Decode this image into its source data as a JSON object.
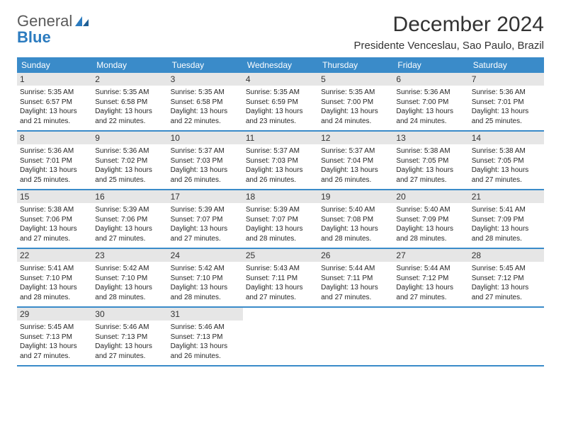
{
  "brand": {
    "name1": "General",
    "name2": "Blue"
  },
  "title": "December 2024",
  "location": "Presidente Venceslau, Sao Paulo, Brazil",
  "colors": {
    "header_bg": "#3a8bc9",
    "daynum_bg": "#e6e6e6",
    "row_border": "#3a8bc9",
    "text": "#333333",
    "brand_blue": "#2b7bbf"
  },
  "weekdays": [
    "Sunday",
    "Monday",
    "Tuesday",
    "Wednesday",
    "Thursday",
    "Friday",
    "Saturday"
  ],
  "weeks": [
    [
      {
        "n": "1",
        "sr": "Sunrise: 5:35 AM",
        "ss": "Sunset: 6:57 PM",
        "d1": "Daylight: 13 hours",
        "d2": "and 21 minutes."
      },
      {
        "n": "2",
        "sr": "Sunrise: 5:35 AM",
        "ss": "Sunset: 6:58 PM",
        "d1": "Daylight: 13 hours",
        "d2": "and 22 minutes."
      },
      {
        "n": "3",
        "sr": "Sunrise: 5:35 AM",
        "ss": "Sunset: 6:58 PM",
        "d1": "Daylight: 13 hours",
        "d2": "and 22 minutes."
      },
      {
        "n": "4",
        "sr": "Sunrise: 5:35 AM",
        "ss": "Sunset: 6:59 PM",
        "d1": "Daylight: 13 hours",
        "d2": "and 23 minutes."
      },
      {
        "n": "5",
        "sr": "Sunrise: 5:35 AM",
        "ss": "Sunset: 7:00 PM",
        "d1": "Daylight: 13 hours",
        "d2": "and 24 minutes."
      },
      {
        "n": "6",
        "sr": "Sunrise: 5:36 AM",
        "ss": "Sunset: 7:00 PM",
        "d1": "Daylight: 13 hours",
        "d2": "and 24 minutes."
      },
      {
        "n": "7",
        "sr": "Sunrise: 5:36 AM",
        "ss": "Sunset: 7:01 PM",
        "d1": "Daylight: 13 hours",
        "d2": "and 25 minutes."
      }
    ],
    [
      {
        "n": "8",
        "sr": "Sunrise: 5:36 AM",
        "ss": "Sunset: 7:01 PM",
        "d1": "Daylight: 13 hours",
        "d2": "and 25 minutes."
      },
      {
        "n": "9",
        "sr": "Sunrise: 5:36 AM",
        "ss": "Sunset: 7:02 PM",
        "d1": "Daylight: 13 hours",
        "d2": "and 25 minutes."
      },
      {
        "n": "10",
        "sr": "Sunrise: 5:37 AM",
        "ss": "Sunset: 7:03 PM",
        "d1": "Daylight: 13 hours",
        "d2": "and 26 minutes."
      },
      {
        "n": "11",
        "sr": "Sunrise: 5:37 AM",
        "ss": "Sunset: 7:03 PM",
        "d1": "Daylight: 13 hours",
        "d2": "and 26 minutes."
      },
      {
        "n": "12",
        "sr": "Sunrise: 5:37 AM",
        "ss": "Sunset: 7:04 PM",
        "d1": "Daylight: 13 hours",
        "d2": "and 26 minutes."
      },
      {
        "n": "13",
        "sr": "Sunrise: 5:38 AM",
        "ss": "Sunset: 7:05 PM",
        "d1": "Daylight: 13 hours",
        "d2": "and 27 minutes."
      },
      {
        "n": "14",
        "sr": "Sunrise: 5:38 AM",
        "ss": "Sunset: 7:05 PM",
        "d1": "Daylight: 13 hours",
        "d2": "and 27 minutes."
      }
    ],
    [
      {
        "n": "15",
        "sr": "Sunrise: 5:38 AM",
        "ss": "Sunset: 7:06 PM",
        "d1": "Daylight: 13 hours",
        "d2": "and 27 minutes."
      },
      {
        "n": "16",
        "sr": "Sunrise: 5:39 AM",
        "ss": "Sunset: 7:06 PM",
        "d1": "Daylight: 13 hours",
        "d2": "and 27 minutes."
      },
      {
        "n": "17",
        "sr": "Sunrise: 5:39 AM",
        "ss": "Sunset: 7:07 PM",
        "d1": "Daylight: 13 hours",
        "d2": "and 27 minutes."
      },
      {
        "n": "18",
        "sr": "Sunrise: 5:39 AM",
        "ss": "Sunset: 7:07 PM",
        "d1": "Daylight: 13 hours",
        "d2": "and 28 minutes."
      },
      {
        "n": "19",
        "sr": "Sunrise: 5:40 AM",
        "ss": "Sunset: 7:08 PM",
        "d1": "Daylight: 13 hours",
        "d2": "and 28 minutes."
      },
      {
        "n": "20",
        "sr": "Sunrise: 5:40 AM",
        "ss": "Sunset: 7:09 PM",
        "d1": "Daylight: 13 hours",
        "d2": "and 28 minutes."
      },
      {
        "n": "21",
        "sr": "Sunrise: 5:41 AM",
        "ss": "Sunset: 7:09 PM",
        "d1": "Daylight: 13 hours",
        "d2": "and 28 minutes."
      }
    ],
    [
      {
        "n": "22",
        "sr": "Sunrise: 5:41 AM",
        "ss": "Sunset: 7:10 PM",
        "d1": "Daylight: 13 hours",
        "d2": "and 28 minutes."
      },
      {
        "n": "23",
        "sr": "Sunrise: 5:42 AM",
        "ss": "Sunset: 7:10 PM",
        "d1": "Daylight: 13 hours",
        "d2": "and 28 minutes."
      },
      {
        "n": "24",
        "sr": "Sunrise: 5:42 AM",
        "ss": "Sunset: 7:10 PM",
        "d1": "Daylight: 13 hours",
        "d2": "and 28 minutes."
      },
      {
        "n": "25",
        "sr": "Sunrise: 5:43 AM",
        "ss": "Sunset: 7:11 PM",
        "d1": "Daylight: 13 hours",
        "d2": "and 27 minutes."
      },
      {
        "n": "26",
        "sr": "Sunrise: 5:44 AM",
        "ss": "Sunset: 7:11 PM",
        "d1": "Daylight: 13 hours",
        "d2": "and 27 minutes."
      },
      {
        "n": "27",
        "sr": "Sunrise: 5:44 AM",
        "ss": "Sunset: 7:12 PM",
        "d1": "Daylight: 13 hours",
        "d2": "and 27 minutes."
      },
      {
        "n": "28",
        "sr": "Sunrise: 5:45 AM",
        "ss": "Sunset: 7:12 PM",
        "d1": "Daylight: 13 hours",
        "d2": "and 27 minutes."
      }
    ],
    [
      {
        "n": "29",
        "sr": "Sunrise: 5:45 AM",
        "ss": "Sunset: 7:13 PM",
        "d1": "Daylight: 13 hours",
        "d2": "and 27 minutes."
      },
      {
        "n": "30",
        "sr": "Sunrise: 5:46 AM",
        "ss": "Sunset: 7:13 PM",
        "d1": "Daylight: 13 hours",
        "d2": "and 27 minutes."
      },
      {
        "n": "31",
        "sr": "Sunrise: 5:46 AM",
        "ss": "Sunset: 7:13 PM",
        "d1": "Daylight: 13 hours",
        "d2": "and 26 minutes."
      },
      null,
      null,
      null,
      null
    ]
  ]
}
